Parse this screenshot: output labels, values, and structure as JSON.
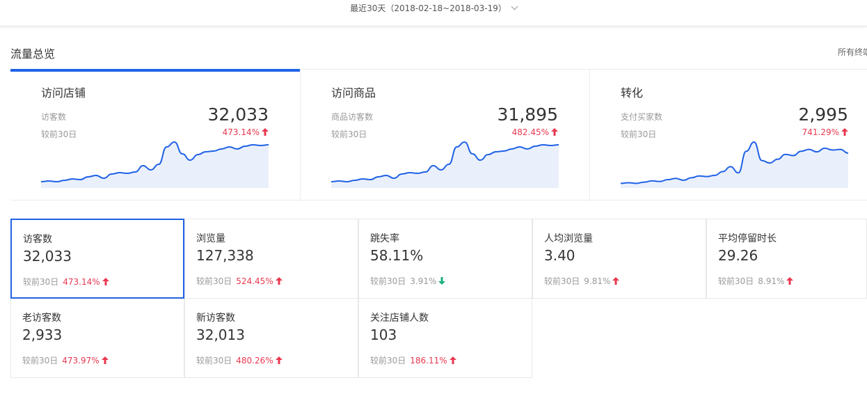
{
  "date_range": {
    "label": "最近30天（2018-02-18~2018-03-19）"
  },
  "section": {
    "title": "流量总览",
    "terminal_filter": "所有终端"
  },
  "overview": [
    {
      "title": "访问店铺",
      "label": "访客数",
      "value": "32,033",
      "compare_label": "较前30日",
      "change": "473.14%",
      "trend": "up",
      "series": [
        5,
        6,
        5,
        7,
        9,
        8,
        12,
        14,
        10,
        16,
        18,
        17,
        19,
        28,
        22,
        30,
        55,
        62,
        45,
        36,
        44,
        48,
        49,
        52,
        55,
        52,
        56,
        58,
        57,
        58
      ]
    },
    {
      "title": "访问商品",
      "label": "商品访客数",
      "value": "31,895",
      "compare_label": "较前30日",
      "change": "482.45%",
      "trend": "up",
      "series": [
        5,
        6,
        5,
        7,
        9,
        8,
        12,
        14,
        10,
        16,
        18,
        17,
        19,
        28,
        22,
        30,
        55,
        62,
        45,
        36,
        44,
        48,
        49,
        52,
        55,
        52,
        56,
        58,
        57,
        58
      ]
    },
    {
      "title": "转化",
      "label": "支付买家数",
      "value": "2,995",
      "compare_label": "较前30日",
      "change": "741.29%",
      "trend": "up",
      "series": [
        3,
        4,
        3,
        5,
        7,
        6,
        9,
        11,
        8,
        12,
        15,
        14,
        16,
        22,
        30,
        20,
        55,
        70,
        40,
        36,
        42,
        50,
        48,
        55,
        58,
        54,
        60,
        57,
        58,
        52
      ]
    }
  ],
  "metrics": [
    {
      "label": "访客数",
      "value": "32,033",
      "compare_label": "较前30日",
      "change": "473.14%",
      "trend": "up"
    },
    {
      "label": "浏览量",
      "value": "127,338",
      "compare_label": "较前30日",
      "change": "524.45%",
      "trend": "up"
    },
    {
      "label": "跳失率",
      "value": "58.11%",
      "compare_label": "较前30日",
      "change": "3.91%",
      "trend": "down"
    },
    {
      "label": "人均浏览量",
      "value": "3.40",
      "compare_label": "较前30日",
      "change": "9.81%",
      "trend": "up"
    },
    {
      "label": "平均停留时长",
      "value": "29.26",
      "compare_label": "较前30日",
      "change": "8.91%",
      "trend": "up"
    },
    {
      "label": "老访客数",
      "value": "2,933",
      "compare_label": "较前30日",
      "change": "473.97%",
      "trend": "up"
    },
    {
      "label": "新访客数",
      "value": "32,013",
      "compare_label": "较前30日",
      "change": "480.26%",
      "trend": "up"
    },
    {
      "label": "关注店铺人数",
      "value": "103",
      "compare_label": "较前30日",
      "change": "186.11%",
      "trend": "up"
    }
  ],
  "colors": {
    "accent": "#2062e6",
    "up": "#e8384f",
    "down": "#1ab27b",
    "area": "#eaf0fb"
  }
}
